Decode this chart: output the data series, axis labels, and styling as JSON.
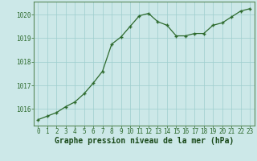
{
  "x": [
    0,
    1,
    2,
    3,
    4,
    5,
    6,
    7,
    8,
    9,
    10,
    11,
    12,
    13,
    14,
    15,
    16,
    17,
    18,
    19,
    20,
    21,
    22,
    23
  ],
  "y": [
    1015.55,
    1015.7,
    1015.85,
    1016.1,
    1016.3,
    1016.65,
    1017.1,
    1017.6,
    1018.75,
    1019.05,
    1019.5,
    1019.95,
    1020.05,
    1019.7,
    1019.55,
    1019.1,
    1019.1,
    1019.2,
    1019.2,
    1019.55,
    1019.65,
    1019.9,
    1020.15,
    1020.25
  ],
  "ylim": [
    1015.3,
    1020.55
  ],
  "yticks": [
    1016,
    1017,
    1018,
    1019,
    1020
  ],
  "xlim": [
    -0.5,
    23.5
  ],
  "xticks": [
    0,
    1,
    2,
    3,
    4,
    5,
    6,
    7,
    8,
    9,
    10,
    11,
    12,
    13,
    14,
    15,
    16,
    17,
    18,
    19,
    20,
    21,
    22,
    23
  ],
  "line_color": "#2d6a2d",
  "marker_color": "#2d6a2d",
  "bg_color": "#cce8e8",
  "grid_color": "#9ecece",
  "xlabel": "Graphe pression niveau de la mer (hPa)",
  "xlabel_color": "#1a4a1a",
  "tick_color": "#2d6a2d",
  "axis_color": "#5a8a5a",
  "tick_fontsize": 5.5,
  "xlabel_fontsize": 7.0,
  "xlabel_bold": true
}
